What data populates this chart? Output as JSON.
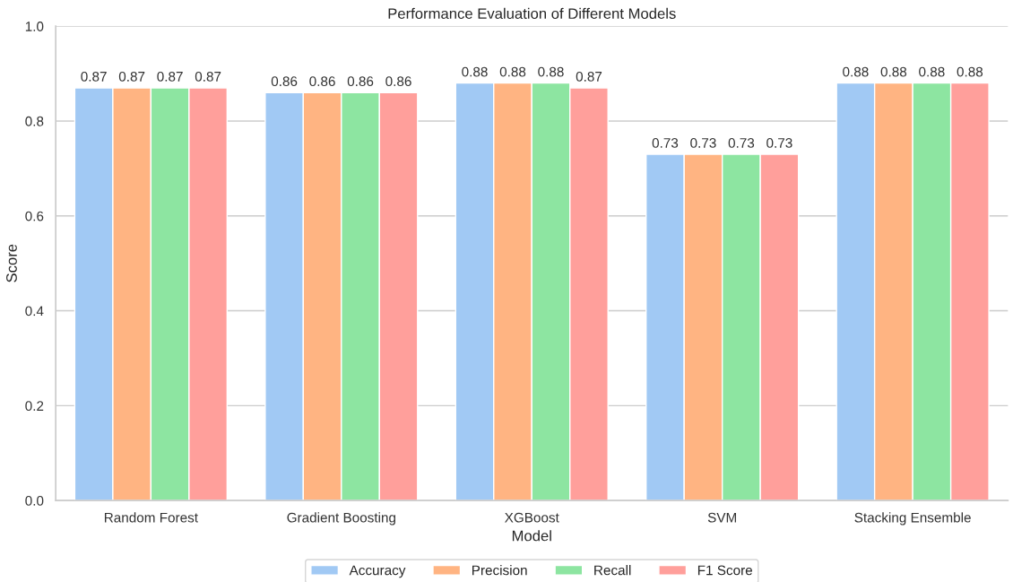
{
  "chart_data": {
    "type": "bar",
    "title": "Performance Evaluation of Different Models",
    "xlabel": "Model",
    "ylabel": "Score",
    "categories": [
      "Random Forest",
      "Gradient Boosting",
      "XGBoost",
      "SVM",
      "Stacking Ensemble"
    ],
    "series": [
      {
        "name": "Accuracy",
        "color": "#a1c9f4",
        "values": [
          0.87,
          0.86,
          0.88,
          0.73,
          0.88
        ]
      },
      {
        "name": "Precision",
        "color": "#ffb482",
        "values": [
          0.87,
          0.86,
          0.88,
          0.73,
          0.88
        ]
      },
      {
        "name": "Recall",
        "color": "#8de5a1",
        "values": [
          0.87,
          0.86,
          0.88,
          0.73,
          0.88
        ]
      },
      {
        "name": "F1 Score",
        "color": "#ff9f9b",
        "values": [
          0.87,
          0.86,
          0.87,
          0.73,
          0.88
        ]
      }
    ],
    "ylim": [
      0.0,
      1.0
    ],
    "yticks": [
      {
        "value": 0.0,
        "label": "0.0"
      },
      0.2,
      0.4,
      0.6,
      0.8,
      {
        "value": 1.0,
        "label": "1.0"
      }
    ],
    "grid": "y",
    "legend": "bottom",
    "data_labels": true
  }
}
